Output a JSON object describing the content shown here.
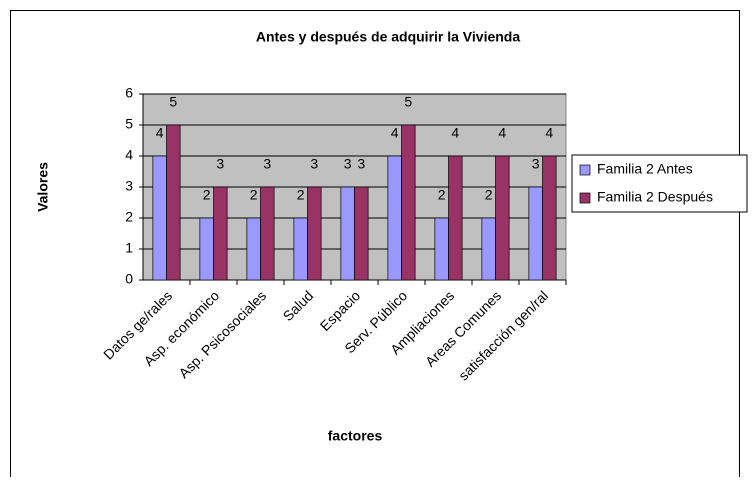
{
  "chart_data": {
    "type": "bar",
    "title": "Antes y después de adquirir la Vivienda",
    "x_label": "factores",
    "y_label": "Valores",
    "categories": [
      "Datos ge/rales",
      "Asp. económico",
      "Asp. Psicosociales",
      "Salud",
      "Espacio",
      "Serv. Público",
      "Ampliaciones",
      "Areas Comunes",
      "satisfacción gen/ral"
    ],
    "series": [
      {
        "name": "Familia 2 Antes",
        "color": "#9999ff",
        "values": [
          4,
          2,
          2,
          2,
          3,
          4,
          2,
          2,
          3
        ]
      },
      {
        "name": "Familia 2 Después",
        "color": "#993366",
        "values": [
          5,
          3,
          3,
          3,
          3,
          5,
          4,
          4,
          4
        ]
      }
    ],
    "ylim": [
      0,
      6
    ],
    "yticks": [
      0,
      1,
      2,
      3,
      4,
      5,
      6
    ],
    "grid": true,
    "legend": "right"
  }
}
